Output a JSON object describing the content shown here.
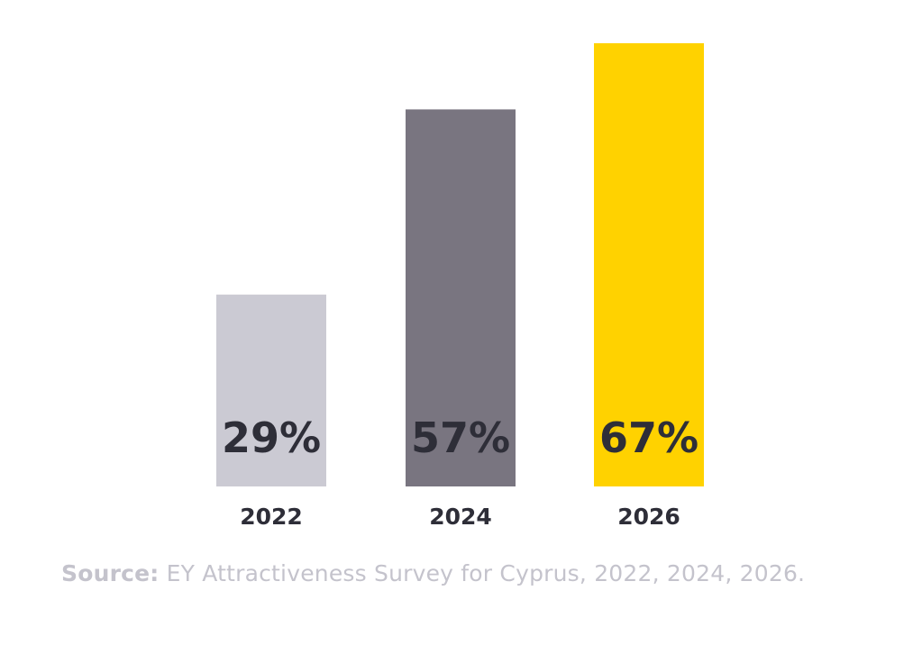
{
  "chart_data": {
    "type": "bar",
    "categories": [
      "2022",
      "2024",
      "2026"
    ],
    "values": [
      29,
      57,
      67
    ],
    "value_labels": [
      "29%",
      "57%",
      "67%"
    ],
    "colors": [
      "#cbcad3",
      "#797580",
      "#ffd200"
    ],
    "ylim": [
      0,
      67
    ],
    "grid": false,
    "title": "",
    "xlabel": "",
    "ylabel": ""
  },
  "source": {
    "label": "Source:",
    "text": " EY Attractiveness Survey for Cyprus, 2022, 2024, 2026."
  }
}
